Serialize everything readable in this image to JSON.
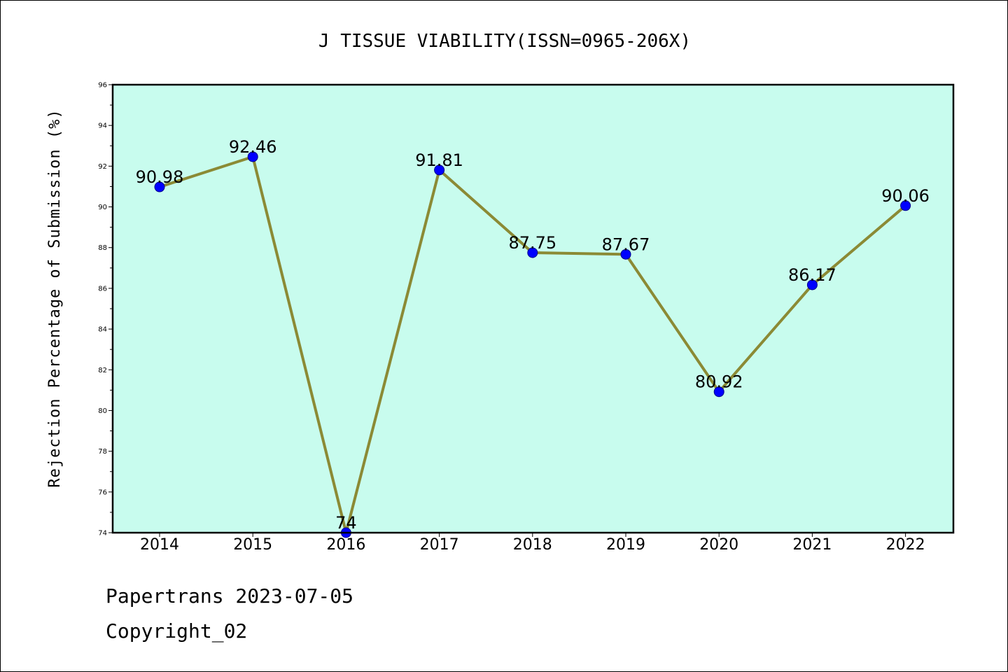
{
  "chart_data": {
    "type": "line",
    "title": "J TISSUE VIABILITY(ISSN=0965-206X)",
    "xlabel": "",
    "ylabel": "Rejection Percentage of Submission (%)",
    "categories": [
      "2014",
      "2015",
      "2016",
      "2017",
      "2018",
      "2019",
      "2020",
      "2021",
      "2022"
    ],
    "series": [
      {
        "name": "Rejection Percentage",
        "values": [
          90.98,
          92.46,
          74,
          91.81,
          87.75,
          87.67,
          80.92,
          86.17,
          90.06
        ],
        "labels": [
          "90.98",
          "92.46",
          "74",
          "91.81",
          "87.75",
          "87.67",
          "80.92",
          "86.17",
          "90.06"
        ]
      }
    ],
    "ylim": [
      74,
      96
    ],
    "yticks": [
      74,
      76,
      78,
      80,
      82,
      84,
      86,
      88,
      90,
      92,
      94,
      96
    ],
    "grid": false,
    "colors": {
      "plot_background": "#c8fcee",
      "line": "#8b8a35",
      "marker": "#0000ff"
    }
  },
  "footer": {
    "line1": "Papertrans 2023-07-05",
    "line2": "Copyright_02"
  }
}
